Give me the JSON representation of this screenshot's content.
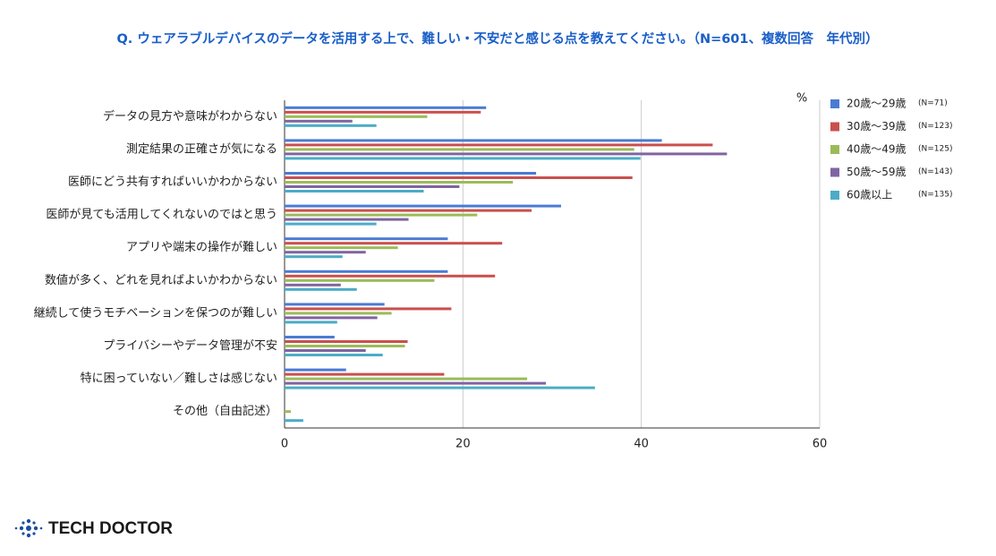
{
  "chart_data": {
    "type": "bar",
    "orientation": "horizontal",
    "title": "Q. ウェアラブルデバイスのデータを活用する上で、難しい・不安だと感じる点を教えてください。（N=601、複数回答　年代別）",
    "unit_label": "%",
    "categories": [
      "データの見方や意味がわからない",
      "測定結果の正確さが気になる",
      "医師にどう共有すればいいかわからない",
      "医師が見ても活用してくれないのではと思う",
      "アプリや端末の操作が難しい",
      "数値が多く、どれを見ればよいかわからない",
      "継続して使うモチベーションを保つのが難しい",
      "プライバシーやデータ管理が不安",
      "特に困っていない／難しさは感じない",
      "その他（自由記述）"
    ],
    "series": [
      {
        "name": "20歳〜29歳",
        "n_label": "(N=71)",
        "color": "#4a7bd4",
        "values": [
          22.6,
          42.3,
          28.2,
          31.0,
          18.3,
          18.3,
          11.2,
          5.6,
          6.9,
          0
        ]
      },
      {
        "name": "30歳〜39歳",
        "n_label": "(N=123)",
        "color": "#c9504d",
        "values": [
          22.0,
          48.0,
          39.0,
          27.7,
          24.4,
          23.6,
          18.7,
          13.8,
          17.9,
          0
        ]
      },
      {
        "name": "40歳〜49歳",
        "n_label": "(N=125)",
        "color": "#9bbb59",
        "values": [
          16.0,
          39.2,
          25.6,
          21.6,
          12.7,
          16.8,
          12.0,
          13.5,
          27.2,
          0.7
        ]
      },
      {
        "name": "50歳〜59歳",
        "n_label": "(N=143)",
        "color": "#8064a2",
        "values": [
          7.6,
          49.6,
          19.6,
          13.9,
          9.1,
          6.3,
          10.4,
          9.1,
          29.3,
          0
        ]
      },
      {
        "name": "60歳以上",
        "n_label": "(N=135)",
        "color": "#4bacc6",
        "values": [
          10.3,
          39.9,
          15.6,
          10.3,
          6.5,
          8.1,
          5.9,
          11.0,
          34.8,
          2.1
        ]
      }
    ],
    "xlim": [
      0,
      60
    ],
    "xticks": [
      0,
      20,
      40,
      60
    ],
    "grid": true
  },
  "footer": {
    "logo": "TECH DOCTOR"
  }
}
